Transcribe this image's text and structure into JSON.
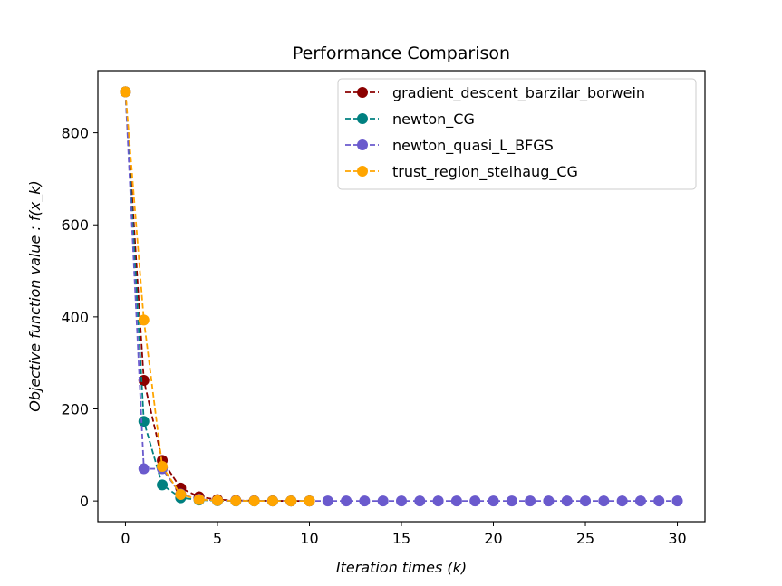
{
  "chart_data": {
    "type": "line",
    "title": "Performance Comparison",
    "xlabel": "Iteration times (k)",
    "ylabel": "Objective function value : f(x_k)",
    "xlim": [
      -1.5,
      31.5
    ],
    "ylim": [
      -45,
      935
    ],
    "xticks": [
      0,
      5,
      10,
      15,
      20,
      25,
      30
    ],
    "yticks": [
      0,
      200,
      400,
      600,
      800
    ],
    "grid": false,
    "legend_position": "top-right",
    "line_style": "dashed with circle markers",
    "series": [
      {
        "name": "gradient_descent_barzilar_borwein",
        "color": "#8b0000",
        "x": [
          0,
          1,
          2,
          3,
          4,
          5,
          6,
          7,
          8,
          9,
          10
        ],
        "y": [
          889,
          262,
          88,
          28,
          9,
          3,
          1,
          0.5,
          0.2,
          0.1,
          0.05
        ]
      },
      {
        "name": "newton_CG",
        "color": "#008080",
        "x": [
          0,
          1,
          2,
          3,
          4,
          5,
          6,
          7,
          8,
          9,
          10
        ],
        "y": [
          889,
          173,
          35,
          7,
          2,
          0.5,
          0.1,
          0,
          0,
          0,
          0
        ]
      },
      {
        "name": "newton_quasi_L_BFGS",
        "color": "#6a5acd",
        "x": [
          0,
          1,
          2,
          3,
          4,
          5,
          6,
          7,
          8,
          9,
          10,
          11,
          12,
          13,
          14,
          15,
          16,
          17,
          18,
          19,
          20,
          21,
          22,
          23,
          24,
          25,
          26,
          27,
          28,
          29,
          30
        ],
        "y": [
          889,
          70,
          70,
          15,
          4,
          1,
          0.5,
          0.2,
          0.1,
          0,
          0,
          0,
          0,
          0,
          0,
          0,
          0,
          0,
          0,
          0,
          0,
          0,
          0,
          0,
          0,
          0,
          0,
          0,
          0,
          0,
          0
        ]
      },
      {
        "name": "trust_region_steihaug_CG",
        "color": "#ffa500",
        "x": [
          0,
          1,
          2,
          3,
          4,
          5,
          6,
          7,
          8,
          9,
          10
        ],
        "y": [
          889,
          393,
          75,
          14,
          3,
          1,
          0.3,
          0.1,
          0,
          0,
          0
        ]
      }
    ]
  }
}
